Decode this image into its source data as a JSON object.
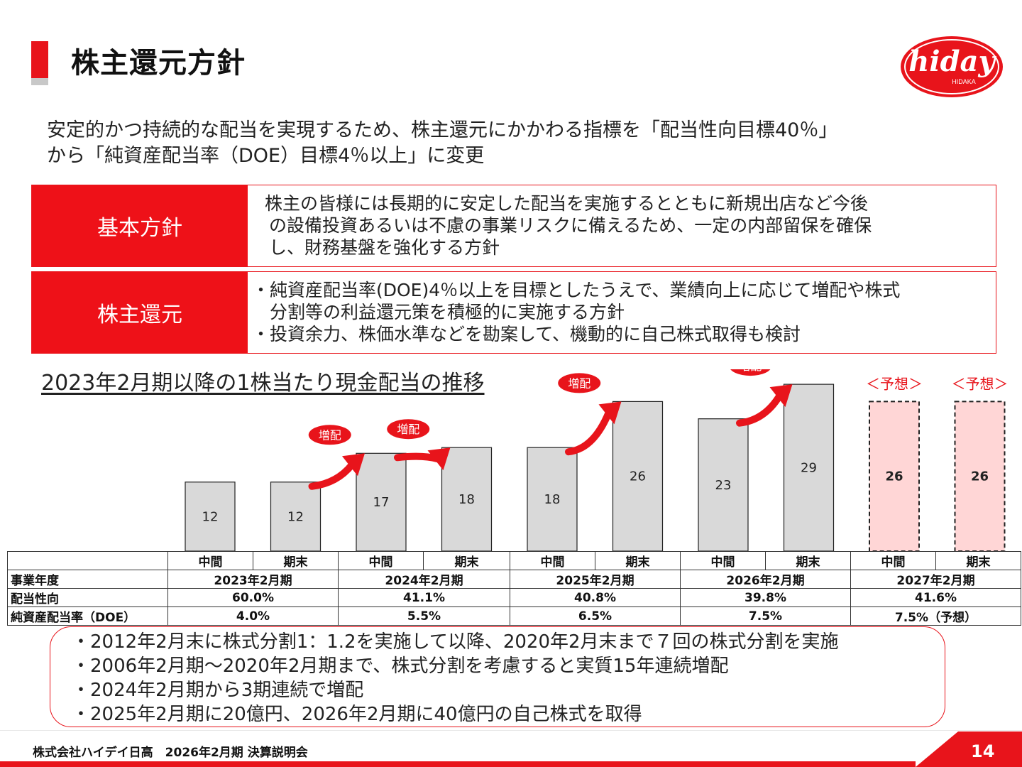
{
  "header": {
    "title": "株主還元方針"
  },
  "logo": {
    "wordmark": "hiday",
    "subtext": "HIDAKA"
  },
  "intro": {
    "line1": "安定的かつ持続的な配当を実現するため、株主還元にかかわる指標を「配当性向目標40％」",
    "line2": "から「純資産配当率（DOE）目標4％以上」に変更"
  },
  "policy": {
    "basic": {
      "label": "基本方針",
      "lines": [
        "株主の皆様には長期的に安定した配当を実施するとともに新規出店など今後",
        "の設備投資あるいは不慮の事業リスクに備えるため、一定の内部留保を確保",
        "し、財務基盤を強化する方針"
      ]
    },
    "return": {
      "label": "株主還元",
      "lines": [
        "・純資産配当率(DOE)4％以上を目標としたうえで、業績向上に応じて増配や株式",
        "　分割等の利益還元策を積極的に実施する方針",
        "・投資余力、株価水準などを勘案して、機動的に自己株式取得も検討"
      ]
    }
  },
  "chart_data": {
    "type": "bar",
    "title": "2023年2月期以降の1株当たり現金配当の推移",
    "categories": [
      "2023年2月期 中間",
      "2023年2月期 期末",
      "2024年2月期 中間",
      "2024年2月期 期末",
      "2025年2月期 中間",
      "2025年2月期 期末",
      "2026年2月期 中間",
      "2026年2月期 期末",
      "2027年2月期 中間",
      "2027年2月期 期末"
    ],
    "values": [
      12,
      12,
      17,
      18,
      18,
      26,
      23,
      29,
      26,
      26
    ],
    "forecast": [
      false,
      false,
      false,
      false,
      false,
      false,
      false,
      false,
      true,
      true
    ],
    "forecast_label": "＜予想＞",
    "increase_label": "増配",
    "colors": {
      "actual": "#d9d9d9",
      "forecast": "#ffd6d6",
      "arrow": "#e8141b"
    }
  },
  "table": {
    "sub_headers": [
      "中間",
      "期末"
    ],
    "row_labels": {
      "year": "事業年度",
      "payout": "配当性向",
      "doe": "純資産配当率（DOE）"
    },
    "years": [
      "2023年2月期",
      "2024年2月期",
      "2025年2月期",
      "2026年2月期",
      "2027年2月期"
    ],
    "payout": [
      "60.0%",
      "41.1%",
      "40.8%",
      "39.8%",
      "41.6%"
    ],
    "doe": [
      "4.0%",
      "5.5%",
      "6.5%",
      "7.5%",
      "7.5%（予想）"
    ]
  },
  "notes": [
    "・2012年2月末に株式分割1：1.2を実施して以降、2020年2月末まで７回の株式分割を実施",
    "・2006年2月期～2020年2月期まで、株式分割を考慮すると実質15年連続増配",
    "・2024年2月期から3期連続で増配",
    "・2025年2月期に20億円、2026年2月期に40億円の自己株式を取得"
  ],
  "footer": {
    "company": "株式会社ハイデイ日高　2026年2月期  決算説明会",
    "page": "14"
  }
}
